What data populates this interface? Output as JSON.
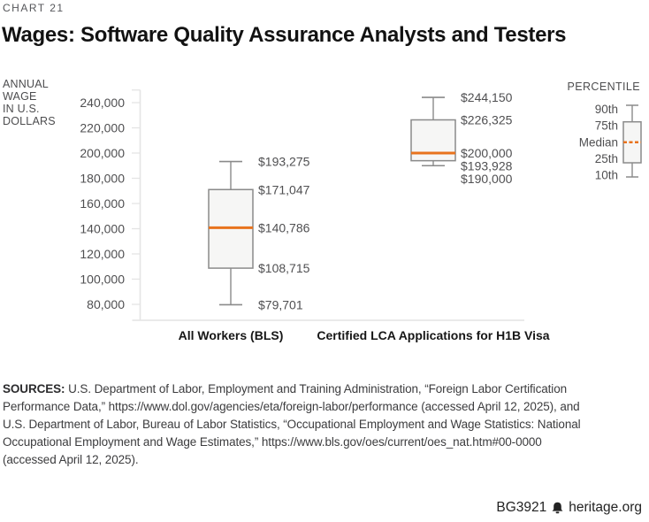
{
  "header": {
    "eyebrow": "CHART 21",
    "title": "Wages: Software Quality Assurance Analysts and Testers"
  },
  "chart_data": {
    "type": "boxplot",
    "title": "Wages: Software Quality Assurance Analysts and Testers",
    "ylabel": "ANNUAL WAGE IN U.S. DOLLARS",
    "ylabel_lines": "ANNUAL\nWAGE\nIN U.S.\nDOLLARS",
    "y_axis": {
      "axis_top_value": 250000,
      "axis_bottom_value": 67500,
      "tick_values": [
        240000,
        220000,
        200000,
        180000,
        160000,
        140000,
        120000,
        100000,
        80000
      ],
      "tick_labels": [
        "240,000",
        "220,000",
        "200,000",
        "180,000",
        "160,000",
        "140,000",
        "120,000",
        "100,000",
        "80,000"
      ],
      "grid": false
    },
    "categories": [
      "All Workers (BLS)",
      "Certified LCA Applications for H1B Visa"
    ],
    "series": [
      {
        "category": "All Workers (BLS)",
        "p90": 193275,
        "p75": 171047,
        "median": 140786,
        "p25": 108715,
        "p10": 79701,
        "value_labels": [
          "$193,275",
          "$171,047",
          "$140,786",
          "$108,715",
          "$79,701"
        ]
      },
      {
        "category": "Certified LCA Applications for H1B Visa",
        "p90": 244150,
        "p75": 226325,
        "median": 200000,
        "p25": 193928,
        "p10": 190000,
        "value_labels": [
          "$244,150",
          "$226,325",
          "$200,000",
          "$193,928",
          "$190,000"
        ]
      }
    ],
    "legend": {
      "position": "top-right",
      "title": "PERCENTILE",
      "entries": [
        "90th",
        "75th",
        "Median",
        "25th",
        "10th"
      ]
    },
    "colors": {
      "median": "#e8731d",
      "box_fill": "#f6f6f5",
      "box_stroke": "#8a8a8a",
      "axis": "#e4e4e4",
      "text": "#4f4f51"
    }
  },
  "sources": {
    "label": "SOURCES:",
    "text_lines": [
      "U.S. Department of Labor, Employment and Training Administration, “Foreign Labor Certification",
      "Performance Data,” https://www.dol.gov/agencies/eta/foreign-labor/performance (accessed April 12, 2025), and",
      "U.S. Department of Labor, Bureau of Labor Statistics, “Occupational Employment and Wage Statistics: National",
      "Occupational Employment and Wage Estimates,” https://www.bls.gov/oes/current/oes_nat.htm#00-0000",
      "(accessed April 12, 2025)."
    ]
  },
  "footer": {
    "report_id": "BG3921",
    "site": "heritage.org"
  }
}
